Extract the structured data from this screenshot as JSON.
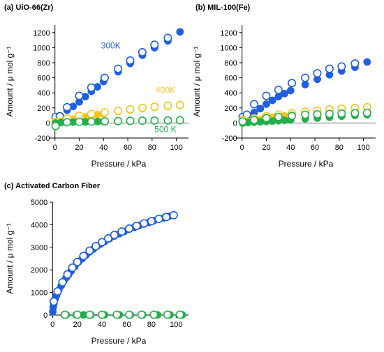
{
  "chart_data": [
    {
      "type": "scatter",
      "panel_label": "(a) UiO-66(Zr)",
      "xlabel": "Pressure / kPa",
      "ylabel": "Amount / μ mol g⁻¹",
      "xlim": [
        -5,
        110
      ],
      "ylim": [
        -200,
        1300
      ],
      "xticks": [
        0,
        20,
        40,
        60,
        80,
        100
      ],
      "yticks": [
        -200,
        0,
        200,
        400,
        600,
        800,
        1000,
        1200
      ],
      "grid": false,
      "series": [
        {
          "name": "300K",
          "color": "#1f5fe0",
          "marker": "filled",
          "x": [
            0.5,
            5,
            10,
            15,
            20,
            25,
            30,
            35,
            40,
            52,
            62,
            72,
            82,
            93,
            103
          ],
          "y": [
            10,
            80,
            170,
            220,
            280,
            350,
            420,
            480,
            550,
            680,
            790,
            900,
            1000,
            1090,
            1210
          ]
        },
        {
          "name": "300K",
          "color": "#1f5fe0",
          "marker": "open",
          "x": [
            0.5,
            4,
            10,
            20,
            30,
            41,
            52,
            62,
            72,
            82,
            93
          ],
          "y": [
            80,
            90,
            210,
            360,
            470,
            600,
            720,
            830,
            940,
            1040,
            1130
          ]
        },
        {
          "name": "400K",
          "color": "#f5c518",
          "marker": "filled",
          "x": [
            0.5,
            5,
            10,
            15,
            20,
            25,
            30,
            35,
            40,
            52,
            62,
            72,
            82,
            93,
            103
          ],
          "y": [
            5,
            20,
            35,
            50,
            65,
            80,
            95,
            110,
            125,
            150,
            170,
            190,
            205,
            220,
            235
          ]
        },
        {
          "name": "400K",
          "color": "#f5c518",
          "marker": "open",
          "x": [
            0.5,
            10,
            20,
            30,
            41,
            52,
            62,
            72,
            82,
            93,
            103
          ],
          "y": [
            15,
            60,
            95,
            120,
            140,
            160,
            180,
            200,
            215,
            230,
            240
          ]
        },
        {
          "name": "500 K",
          "color": "#1fb04a",
          "marker": "filled",
          "x": [
            0.5,
            5,
            10,
            15,
            20,
            25,
            30,
            35,
            40,
            52,
            62,
            72,
            82,
            93,
            103
          ],
          "y": [
            0,
            5,
            8,
            10,
            12,
            14,
            16,
            18,
            20,
            22,
            24,
            26,
            28,
            30,
            32
          ]
        },
        {
          "name": "500 K",
          "color": "#1fb04a",
          "marker": "open",
          "x": [
            0.5,
            10,
            20,
            30,
            41,
            52,
            62,
            72,
            82,
            93,
            103
          ],
          "y": [
            -40,
            10,
            15,
            18,
            22,
            25,
            28,
            30,
            32,
            34,
            36
          ]
        }
      ],
      "annotations": [
        {
          "text": "300K",
          "color": "#1f5fe0",
          "x": 46,
          "y": 990
        },
        {
          "text": "400K",
          "color": "#f5c518",
          "x": 91,
          "y": 400
        },
        {
          "text": "500 K",
          "color": "#1fb04a",
          "x": 91,
          "y": -120
        }
      ]
    },
    {
      "type": "scatter",
      "panel_label": "(b) MIL-100(Fe)",
      "xlabel": "Pressure / kPa",
      "ylabel": "Amount / μ mol g⁻¹",
      "xlim": [
        -5,
        110
      ],
      "ylim": [
        -200,
        1300
      ],
      "xticks": [
        0,
        20,
        40,
        60,
        80,
        100
      ],
      "yticks": [
        -200,
        0,
        200,
        400,
        600,
        800,
        1000,
        1200
      ],
      "grid": false,
      "series": [
        {
          "name": "300K",
          "color": "#1f5fe0",
          "marker": "filled",
          "x": [
            0.5,
            5,
            10,
            15,
            20,
            25,
            30,
            35,
            40,
            52,
            62,
            72,
            82,
            93,
            103
          ],
          "y": [
            20,
            70,
            140,
            190,
            250,
            300,
            350,
            390,
            430,
            510,
            580,
            640,
            690,
            740,
            810
          ]
        },
        {
          "name": "300K",
          "color": "#1f5fe0",
          "marker": "open",
          "x": [
            0.5,
            4,
            10,
            20,
            30,
            41,
            52,
            62,
            72,
            82,
            93
          ],
          "y": [
            80,
            110,
            250,
            360,
            440,
            530,
            600,
            660,
            720,
            750,
            790
          ]
        },
        {
          "name": "400K",
          "color": "#f5c518",
          "marker": "filled",
          "x": [
            0.5,
            5,
            10,
            15,
            20,
            25,
            30,
            35,
            40,
            52,
            62,
            72,
            82,
            93,
            103
          ],
          "y": [
            5,
            20,
            30,
            45,
            60,
            75,
            85,
            95,
            105,
            125,
            145,
            160,
            175,
            185,
            200
          ]
        },
        {
          "name": "400K",
          "color": "#f5c518",
          "marker": "open",
          "x": [
            0.5,
            10,
            20,
            30,
            41,
            52,
            62,
            72,
            82,
            93,
            103
          ],
          "y": [
            40,
            60,
            90,
            110,
            130,
            150,
            165,
            180,
            190,
            200,
            210
          ]
        },
        {
          "name": "500 K",
          "color": "#1fb04a",
          "marker": "filled",
          "x": [
            0.5,
            5,
            10,
            15,
            20,
            25,
            30,
            35,
            40,
            52,
            62,
            72,
            82,
            93,
            103
          ],
          "y": [
            0,
            5,
            10,
            15,
            20,
            25,
            30,
            35,
            40,
            55,
            65,
            75,
            90,
            100,
            110
          ]
        },
        {
          "name": "500 K",
          "color": "#1fb04a",
          "marker": "open",
          "x": [
            0.5,
            10,
            20,
            30,
            41,
            52,
            62,
            72,
            82,
            93,
            103
          ],
          "y": [
            20,
            40,
            65,
            80,
            95,
            110,
            115,
            120,
            125,
            130,
            135
          ]
        }
      ]
    },
    {
      "type": "scatter",
      "panel_label": "(c) Activated Carbon Fiber",
      "xlabel": "Pressure / kPa",
      "ylabel": "Amount / μ mol g⁻¹",
      "xlim": [
        -3,
        110
      ],
      "ylim": [
        0,
        5000
      ],
      "xticks": [
        0,
        20,
        40,
        60,
        80,
        100
      ],
      "yticks": [
        0,
        1000,
        2000,
        3000,
        4000,
        5000
      ],
      "grid": false,
      "series": [
        {
          "name": "300K",
          "color": "#1f5fe0",
          "marker": "filled",
          "x": [
            0.2,
            0.5,
            1,
            2,
            3,
            4,
            5,
            7,
            9,
            11,
            13,
            15,
            18,
            21,
            24,
            27,
            30,
            33,
            36,
            39,
            42,
            46,
            50,
            54,
            58,
            62,
            66,
            70,
            74,
            78,
            82,
            86,
            90,
            94,
            98
          ],
          "y": [
            150,
            350,
            500,
            700,
            850,
            1000,
            1100,
            1300,
            1500,
            1650,
            1800,
            1950,
            2150,
            2350,
            2500,
            2650,
            2800,
            2920,
            3050,
            3150,
            3250,
            3380,
            3500,
            3600,
            3700,
            3800,
            3880,
            3960,
            4030,
            4100,
            4180,
            4250,
            4300,
            4370,
            4420
          ]
        },
        {
          "name": "300K",
          "color": "#1f5fe0",
          "marker": "open",
          "x": [
            1,
            4,
            8,
            12,
            16,
            20,
            25,
            30,
            35,
            40,
            45,
            50,
            56,
            62,
            68,
            74,
            80,
            86,
            92,
            98
          ],
          "y": [
            600,
            1050,
            1450,
            1800,
            2100,
            2350,
            2620,
            2850,
            3050,
            3230,
            3400,
            3550,
            3700,
            3830,
            3950,
            4060,
            4160,
            4260,
            4340,
            4420
          ]
        },
        {
          "name": "500 K",
          "color": "#1fb04a",
          "marker": "filled",
          "x": [
            11,
            19,
            25,
            31,
            42,
            54,
            63,
            73,
            85,
            95,
            105
          ],
          "y": [
            10,
            10,
            10,
            10,
            10,
            10,
            10,
            10,
            10,
            10,
            10
          ]
        },
        {
          "name": "500 K",
          "color": "#1fb04a",
          "marker": "open",
          "x": [
            10,
            20,
            30,
            40,
            52,
            62,
            72,
            82,
            93,
            103
          ],
          "y": [
            15,
            15,
            15,
            15,
            15,
            15,
            15,
            15,
            15,
            15
          ]
        }
      ]
    }
  ]
}
